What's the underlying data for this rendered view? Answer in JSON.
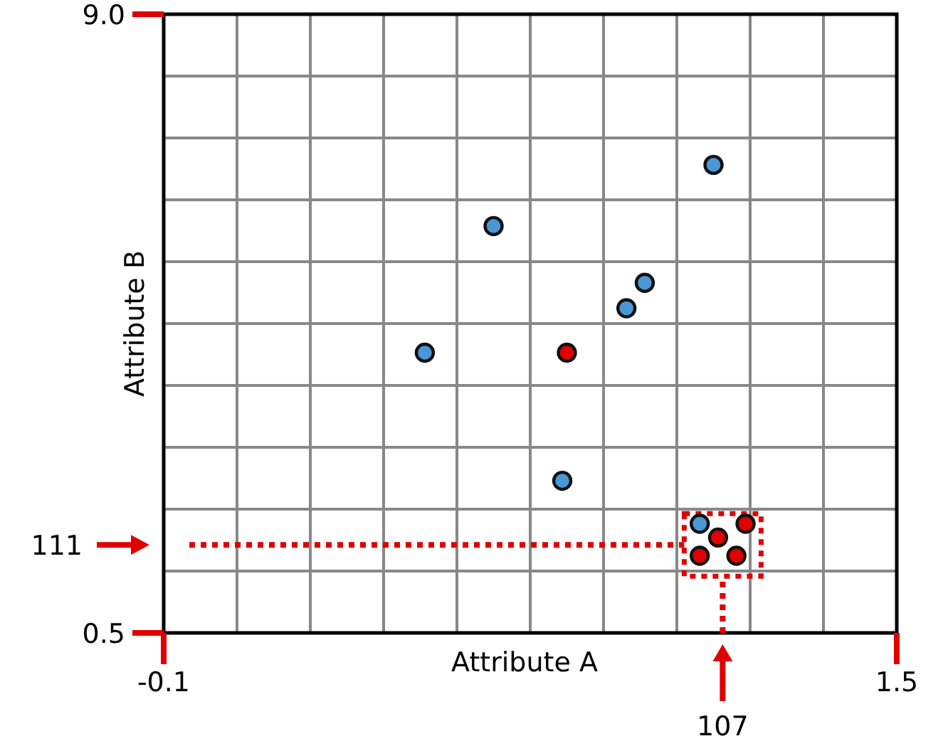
{
  "chart_data": {
    "type": "scatter",
    "xlabel": "Attribute A",
    "ylabel": "Attribute B",
    "xlim": [
      -0.1,
      1.5
    ],
    "ylim": [
      0.5,
      9.0
    ],
    "xticks": [
      {
        "value": -0.1,
        "label": "-0.1"
      },
      {
        "value": 0.06,
        "label": null
      },
      {
        "value": 0.22,
        "label": null
      },
      {
        "value": 0.38,
        "label": null
      },
      {
        "value": 0.54,
        "label": null
      },
      {
        "value": 0.7,
        "label": null
      },
      {
        "value": 0.86,
        "label": null
      },
      {
        "value": 1.02,
        "label": null
      },
      {
        "value": 1.18,
        "label": null
      },
      {
        "value": 1.34,
        "label": null
      },
      {
        "value": 1.5,
        "label": "1.5"
      }
    ],
    "yticks": [
      {
        "value": 0.5,
        "label": "0.5"
      },
      {
        "value": 1.35,
        "label": null
      },
      {
        "value": 2.2,
        "label": null
      },
      {
        "value": 3.05,
        "label": null
      },
      {
        "value": 3.9,
        "label": null
      },
      {
        "value": 4.75,
        "label": null
      },
      {
        "value": 5.6,
        "label": null
      },
      {
        "value": 6.45,
        "label": null
      },
      {
        "value": 7.3,
        "label": null
      },
      {
        "value": 8.15,
        "label": null
      },
      {
        "value": 9.0,
        "label": "9.0"
      }
    ],
    "grid": true,
    "marker": "circle",
    "series": [
      {
        "color": "#4a97d6",
        "x": [
          1.1,
          0.62,
          0.95,
          0.91,
          0.47,
          0.77,
          1.07
        ],
        "values": [
          6.93,
          6.09,
          5.31,
          4.96,
          4.35,
          2.59,
          2.0
        ]
      },
      {
        "color": "#e00000",
        "x": [
          0.78,
          1.17,
          1.11,
          1.07,
          1.15
        ],
        "values": [
          4.35,
          2.0,
          1.81,
          1.56,
          1.56
        ]
      }
    ],
    "ref_lines": [
      {
        "axis": "x",
        "value": 1.12,
        "color": "#e00000",
        "line_style": "dotted"
      },
      {
        "axis": "y",
        "value": 1.71,
        "color": "#e00000",
        "line_style": "dotted"
      }
    ],
    "annotations": [
      "107",
      "111"
    ]
  }
}
